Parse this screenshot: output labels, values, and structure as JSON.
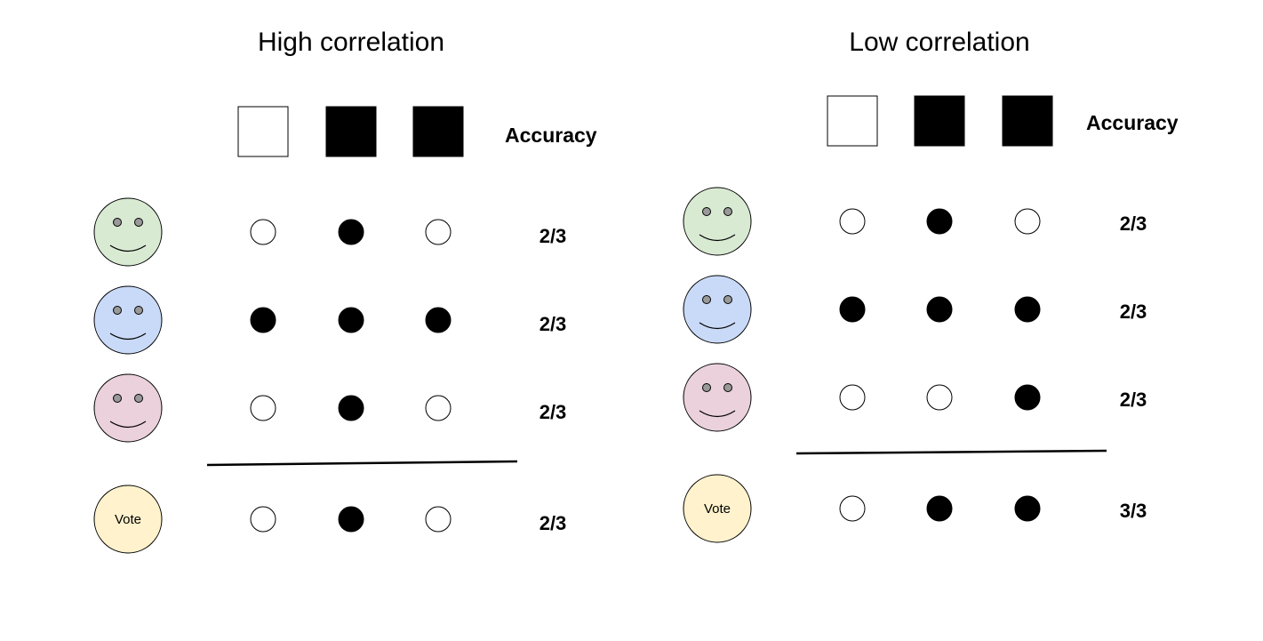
{
  "panels": [
    {
      "title": "High correlation",
      "accuracy_label": "Accuracy",
      "ground_truth": [
        "white",
        "black",
        "black"
      ],
      "rows": [
        {
          "color": "#d9ead3",
          "predictions": [
            "white",
            "black",
            "white"
          ],
          "accuracy": "2/3"
        },
        {
          "color": "#c9daf8",
          "predictions": [
            "black",
            "black",
            "black"
          ],
          "accuracy": "2/3"
        },
        {
          "color": "#ead1dc",
          "predictions": [
            "white",
            "black",
            "white"
          ],
          "accuracy": "2/3"
        }
      ],
      "vote": {
        "label": "Vote",
        "color": "#fff2cc",
        "predictions": [
          "white",
          "black",
          "white"
        ],
        "accuracy": "2/3"
      }
    },
    {
      "title": "Low correlation",
      "accuracy_label": "Accuracy",
      "ground_truth": [
        "white",
        "black",
        "black"
      ],
      "rows": [
        {
          "color": "#d9ead3",
          "predictions": [
            "white",
            "black",
            "white"
          ],
          "accuracy": "2/3"
        },
        {
          "color": "#c9daf8",
          "predictions": [
            "black",
            "black",
            "black"
          ],
          "accuracy": "2/3"
        },
        {
          "color": "#ead1dc",
          "predictions": [
            "white",
            "white",
            "black"
          ],
          "accuracy": "2/3"
        }
      ],
      "vote": {
        "label": "Vote",
        "color": "#fff2cc",
        "predictions": [
          "white",
          "black",
          "black"
        ],
        "accuracy": "3/3"
      }
    }
  ]
}
